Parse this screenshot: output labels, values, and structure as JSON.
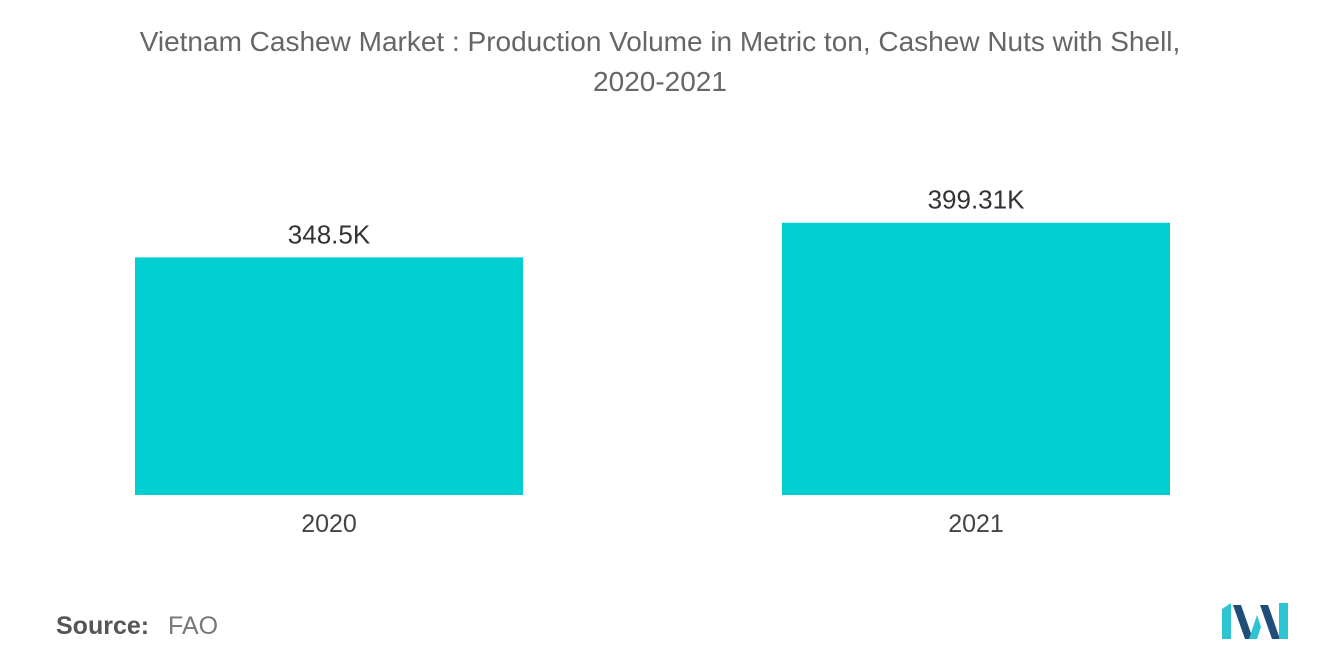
{
  "chart_data": {
    "type": "bar",
    "title_lines": [
      "Vietnam Cashew Market : Production Volume in Metric ton, Cashew Nuts with Shell,",
      "2020-2021"
    ],
    "categories": [
      "2020",
      "2021"
    ],
    "values": [
      348500,
      399310
    ],
    "data_labels": [
      "348.5K",
      "399.31K"
    ],
    "ylim": [
      0,
      440000
    ],
    "grid": false,
    "legend": "none",
    "bar_color": "#00ced1"
  },
  "source": {
    "label": "Source:",
    "value": "FAO"
  },
  "logo": {
    "icon": "mordor-intelligence-logo",
    "colors": [
      "#1f4e79",
      "#2ec5d3"
    ]
  }
}
